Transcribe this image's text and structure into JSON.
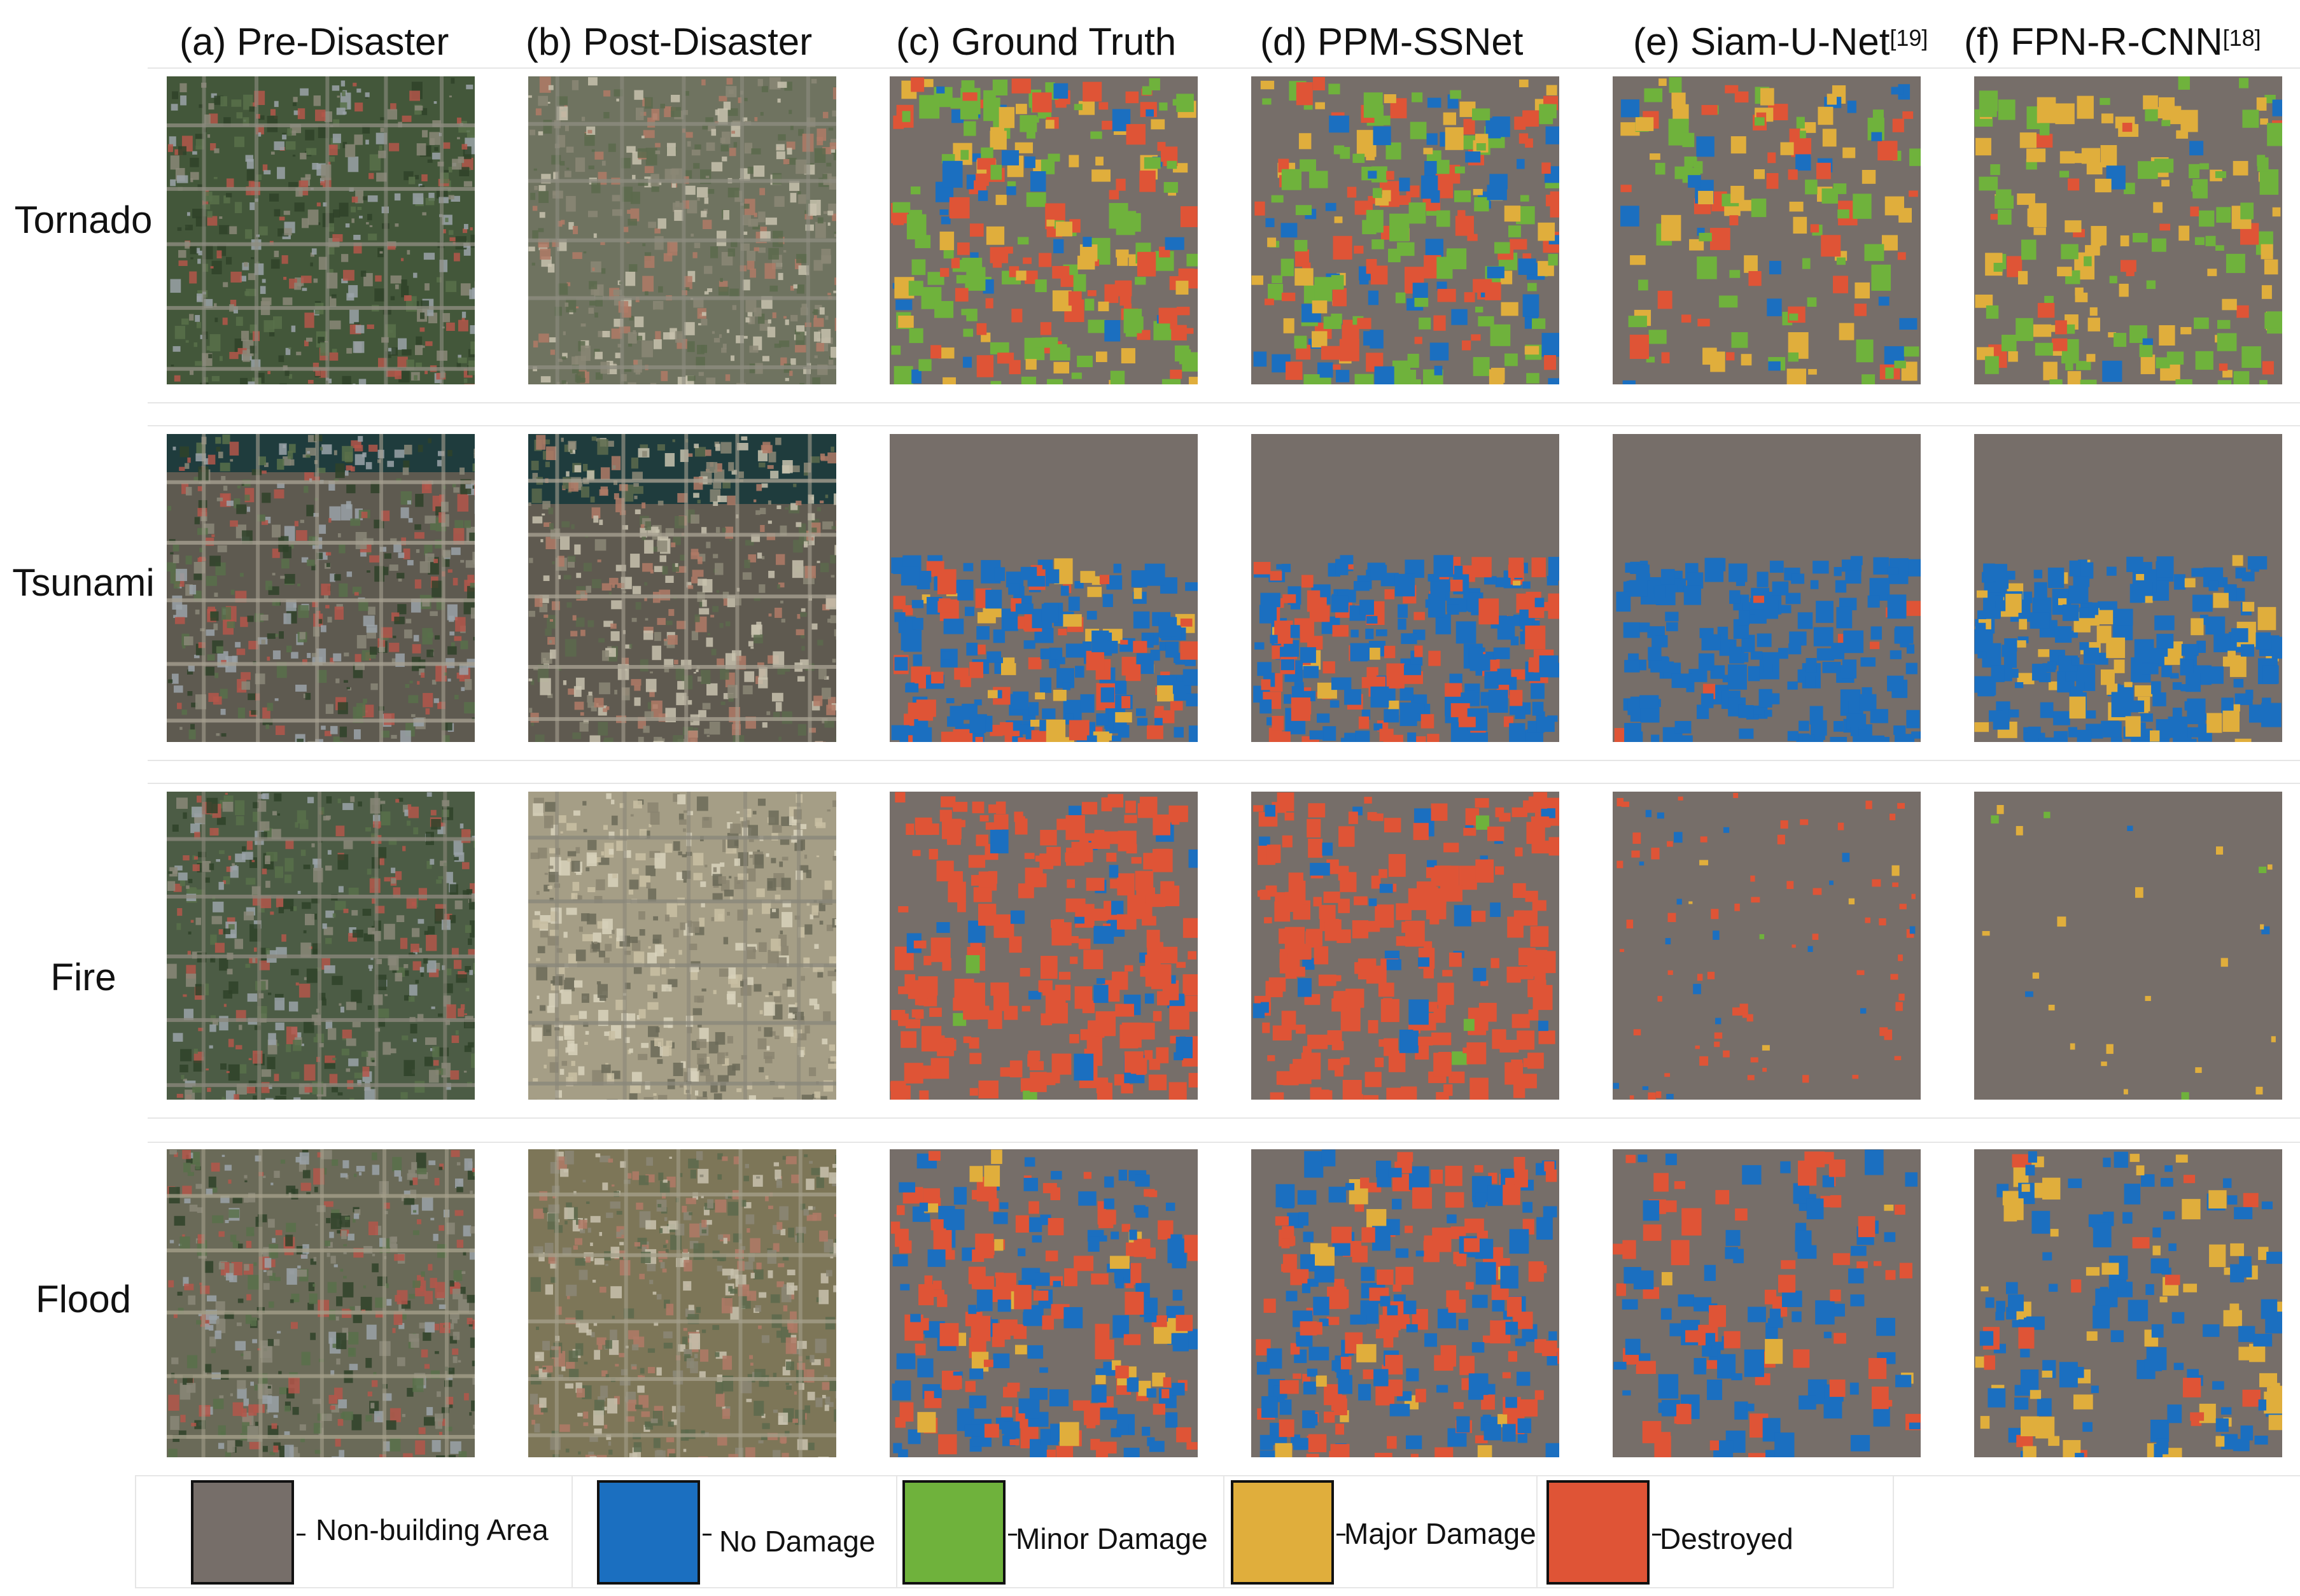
{
  "columns": [
    {
      "label": "(a) Pre-Disaster",
      "sup": ""
    },
    {
      "label": "(b) Post-Disaster",
      "sup": ""
    },
    {
      "label": "(c) Ground Truth",
      "sup": ""
    },
    {
      "label": "(d) PPM-SSNet",
      "sup": ""
    },
    {
      "label": "(e) Siam-U-Net",
      "sup": "[19]"
    },
    {
      "label": "(f) FPN-R-CNN",
      "sup": "[18]"
    }
  ],
  "rows": [
    {
      "label": "Tornado"
    },
    {
      "label": "Tsunami"
    },
    {
      "label": "Fire"
    },
    {
      "label": "Flood"
    }
  ],
  "legend": [
    {
      "label": "Non-building Area",
      "color": "#766e69"
    },
    {
      "label": "No Damage",
      "color": "#1b6fc0"
    },
    {
      "label": "Minor Damage",
      "color": "#6fb23c"
    },
    {
      "label": "Major Damage",
      "color": "#e0ae3c"
    },
    {
      "label": "Destroyed",
      "color": "#df5436"
    }
  ],
  "palette": {
    "background": "#766e69",
    "no_damage": "#1b6fc0",
    "minor_damage": "#6fb23c",
    "major_damage": "#e0ae3c",
    "destroyed": "#df5436",
    "vegetation": "#46603a",
    "burnt": "#b8ae92",
    "water": "#1f3c3d"
  }
}
